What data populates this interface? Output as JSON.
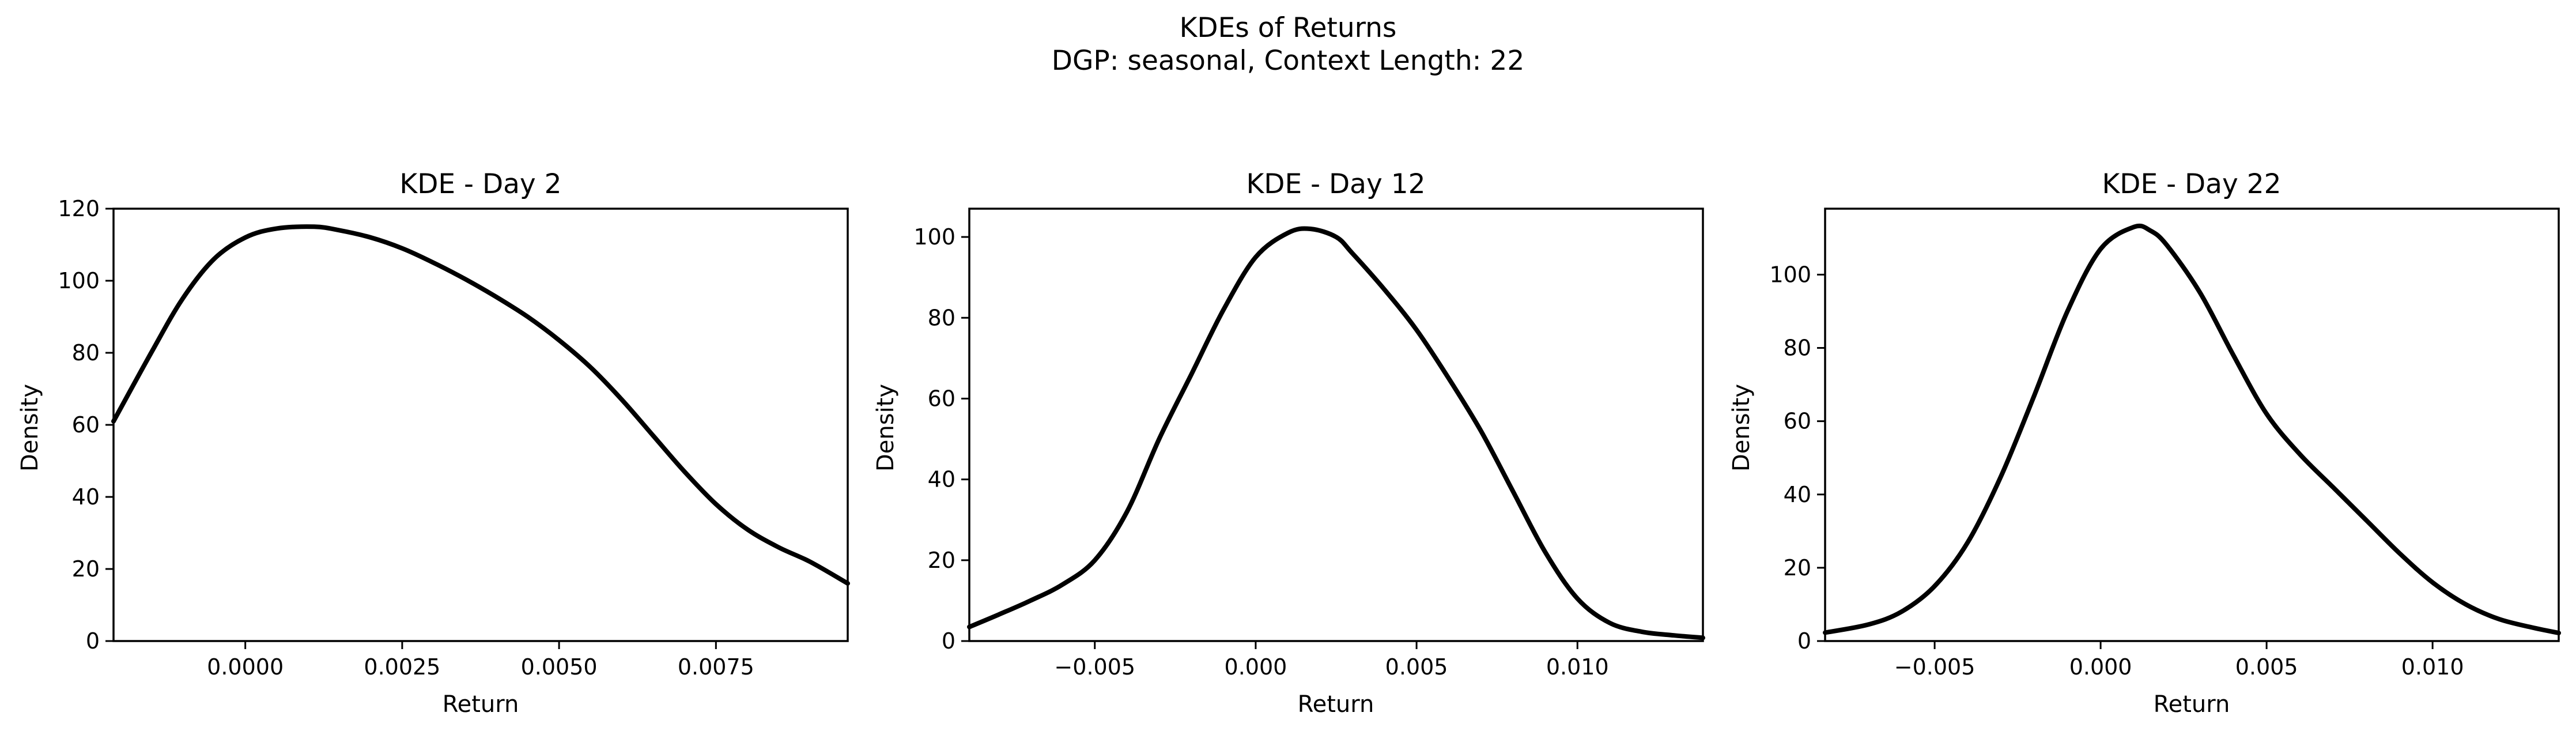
{
  "figure": {
    "title": "KDEs of Returns",
    "subtitle": "DGP: seasonal, Context Length: 22"
  },
  "colors": {
    "line": "#000000",
    "background": "#ffffff"
  },
  "chart_data": [
    {
      "type": "line",
      "title": "KDE - Day 2",
      "xlabel": "Return",
      "ylabel": "Density",
      "xlim": [
        -0.0021,
        0.0096
      ],
      "ylim": [
        0,
        120
      ],
      "xticks": [
        0.0,
        0.0025,
        0.005,
        0.0075
      ],
      "xtick_labels": [
        "0.0000",
        "0.0025",
        "0.0050",
        "0.0075"
      ],
      "yticks": [
        0,
        20,
        40,
        60,
        80,
        100,
        120
      ],
      "ytick_labels": [
        "0",
        "20",
        "40",
        "60",
        "80",
        "100",
        "120"
      ],
      "grid": false,
      "series": [
        {
          "x": [
            -0.0021,
            -0.0015,
            -0.001,
            -0.0005,
            0.0,
            0.0005,
            0.0011,
            0.0015,
            0.002,
            0.0025,
            0.003,
            0.0035,
            0.004,
            0.0045,
            0.005,
            0.0055,
            0.006,
            0.0065,
            0.007,
            0.0075,
            0.008,
            0.0085,
            0.009,
            0.0096
          ],
          "y": [
            61,
            80,
            95,
            106,
            112,
            114.5,
            115,
            114,
            112,
            109,
            105,
            100.5,
            95.5,
            90,
            83.5,
            76,
            67,
            57,
            47,
            38,
            31,
            26,
            22,
            16
          ]
        }
      ]
    },
    {
      "type": "line",
      "title": "KDE - Day 12",
      "xlabel": "Return",
      "ylabel": "Density",
      "xlim": [
        -0.0089,
        0.0139
      ],
      "ylim": [
        0,
        107
      ],
      "xticks": [
        -0.005,
        0.0,
        0.005,
        0.01
      ],
      "xtick_labels": [
        "−0.005",
        "0.000",
        "0.005",
        "0.010"
      ],
      "yticks": [
        0,
        20,
        40,
        60,
        80,
        100
      ],
      "ytick_labels": [
        "0",
        "20",
        "40",
        "60",
        "80",
        "100"
      ],
      "grid": false,
      "series": [
        {
          "x": [
            -0.0089,
            -0.008,
            -0.007,
            -0.006,
            -0.005,
            -0.004,
            -0.003,
            -0.002,
            -0.001,
            0.0,
            0.001,
            0.0017,
            0.0025,
            0.003,
            0.004,
            0.005,
            0.006,
            0.007,
            0.008,
            0.009,
            0.01,
            0.011,
            0.012,
            0.013,
            0.0139
          ],
          "y": [
            3.5,
            6.5,
            10,
            14,
            20,
            32,
            50,
            66,
            82,
            95,
            101,
            102,
            100,
            96,
            87,
            77,
            65,
            52,
            37,
            22,
            10.5,
            4.5,
            2.3,
            1.4,
            0.8
          ]
        }
      ]
    },
    {
      "type": "line",
      "title": "KDE - Day 22",
      "xlabel": "Return",
      "ylabel": "Density",
      "xlim": [
        -0.0083,
        0.0138
      ],
      "ylim": [
        0,
        118
      ],
      "xticks": [
        -0.005,
        0.0,
        0.005,
        0.01
      ],
      "xtick_labels": [
        "−0.005",
        "0.000",
        "0.005",
        "0.010"
      ],
      "yticks": [
        0,
        20,
        40,
        60,
        80,
        100
      ],
      "ytick_labels": [
        "0",
        "20",
        "40",
        "60",
        "80",
        "100"
      ],
      "grid": false,
      "series": [
        {
          "x": [
            -0.0083,
            -0.007,
            -0.006,
            -0.005,
            -0.004,
            -0.003,
            -0.002,
            -0.001,
            0.0,
            0.001,
            0.0015,
            0.002,
            0.003,
            0.004,
            0.005,
            0.006,
            0.007,
            0.008,
            0.009,
            0.01,
            0.011,
            0.012,
            0.013,
            0.0138
          ],
          "y": [
            2.3,
            4.5,
            8,
            15,
            27,
            45,
            67,
            90,
            107,
            113,
            112,
            108,
            95,
            78,
            62,
            51,
            42,
            33,
            24,
            16,
            10,
            6,
            3.7,
            2.2
          ]
        }
      ]
    }
  ]
}
